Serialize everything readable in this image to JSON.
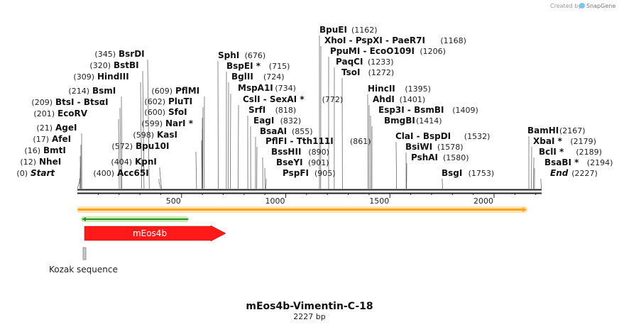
{
  "credit": {
    "created_by": "Created by",
    "brand": "SnapGene"
  },
  "plasmid": {
    "name": "mEos4b-Vimentin-C-18",
    "length_label": "2227 bp",
    "length": 2227
  },
  "ruler": {
    "ticks": [
      500,
      1000,
      1500,
      2000
    ]
  },
  "colors": {
    "backbone": "#222222",
    "orf_fill": "#f7a625",
    "orf_outline": "#fdd9a0",
    "green_fill": "#2f8f2f",
    "green_outline": "#c9ecb0",
    "meos4b": "#ff1a1a",
    "kozak": "#b0b0b0"
  },
  "features": {
    "orf": {
      "start": 1,
      "end": 2227,
      "direction": "forward"
    },
    "green_orf": {
      "start": 10,
      "end": 540,
      "direction": "reverse"
    },
    "meos4b": {
      "label": "mEos4b",
      "start": 10,
      "end": 700
    },
    "kozak": {
      "label": "Kozak sequence",
      "start": 3,
      "end": 10
    }
  },
  "sites": [
    {
      "name": "Start",
      "pos_label": "(0)",
      "bp": 0,
      "style": "italic"
    },
    {
      "name": "NheI",
      "pos_label": "(12)",
      "bp": 12
    },
    {
      "name": "BmtI",
      "pos_label": "(16)",
      "bp": 16
    },
    {
      "name": "AfeI",
      "pos_label": "(17)",
      "bp": 17
    },
    {
      "name": "AgeI",
      "pos_label": "(21)",
      "bp": 21
    },
    {
      "name": "EcoRV",
      "pos_label": "(201)",
      "bp": 201
    },
    {
      "name": "BtsI - BtsαI",
      "pos_label": "(209)",
      "bp": 209
    },
    {
      "name": "BsmI",
      "pos_label": "(214)",
      "bp": 214
    },
    {
      "name": "HindIII",
      "pos_label": "(309)",
      "bp": 309
    },
    {
      "name": "BstBI",
      "pos_label": "(320)",
      "bp": 320
    },
    {
      "name": "BsrDI",
      "pos_label": "(345)",
      "bp": 345
    },
    {
      "name": "Acc65I",
      "pos_label": "(400)",
      "bp": 400
    },
    {
      "name": "KpnI",
      "pos_label": "(404)",
      "bp": 404
    },
    {
      "name": "Bpu10I",
      "pos_label": "(572)",
      "bp": 572
    },
    {
      "name": "KasI",
      "pos_label": "(598)",
      "bp": 598
    },
    {
      "name": "NarI *",
      "pos_label": "(599)",
      "bp": 599
    },
    {
      "name": "SfoI",
      "pos_label": "(600)",
      "bp": 600
    },
    {
      "name": "PluTI",
      "pos_label": "(602)",
      "bp": 602
    },
    {
      "name": "PflMI",
      "pos_label": "(609)",
      "bp": 609
    },
    {
      "name": "SphI",
      "pos_label": "(676)",
      "bp": 676
    },
    {
      "name": "BspEI *",
      "pos_label": "(715)",
      "bp": 715
    },
    {
      "name": "BglII",
      "pos_label": "(724)",
      "bp": 724
    },
    {
      "name": "MspA1I",
      "pos_label": "(734)",
      "bp": 734
    },
    {
      "name": "CslI - SexAI *",
      "pos_label": "(772)",
      "bp": 772
    },
    {
      "name": "SrfI",
      "pos_label": "(818)",
      "bp": 818
    },
    {
      "name": "EagI",
      "pos_label": "(832)",
      "bp": 832
    },
    {
      "name": "BsaAI",
      "pos_label": "(855)",
      "bp": 855
    },
    {
      "name": "PflFI - Tth111I",
      "pos_label": "(861)",
      "bp": 861
    },
    {
      "name": "BssHII",
      "pos_label": "(890)",
      "bp": 890
    },
    {
      "name": "BseYI",
      "pos_label": "(901)",
      "bp": 901
    },
    {
      "name": "PspFI",
      "pos_label": "(905)",
      "bp": 905
    },
    {
      "name": "BpuEI",
      "pos_label": "(1162)",
      "bp": 1162
    },
    {
      "name": "XhoI - PspXI - PaeR7I",
      "pos_label": "(1168)",
      "bp": 1168
    },
    {
      "name": "PpuMI - EcoO109I",
      "pos_label": "(1206)",
      "bp": 1206
    },
    {
      "name": "PaqCI",
      "pos_label": "(1233)",
      "bp": 1233
    },
    {
      "name": "TsoI",
      "pos_label": "(1272)",
      "bp": 1272
    },
    {
      "name": "HincII",
      "pos_label": "(1395)",
      "bp": 1395
    },
    {
      "name": "AhdI",
      "pos_label": "(1401)",
      "bp": 1401
    },
    {
      "name": "Esp3I - BsmBI",
      "pos_label": "(1409)",
      "bp": 1409
    },
    {
      "name": "BmgBI",
      "pos_label": "(1414)",
      "bp": 1414
    },
    {
      "name": "ClaI - BspDI",
      "pos_label": "(1532)",
      "bp": 1532
    },
    {
      "name": "BsiWI",
      "pos_label": "(1578)",
      "bp": 1578
    },
    {
      "name": "PshAI",
      "pos_label": "(1580)",
      "bp": 1580
    },
    {
      "name": "BsgI",
      "pos_label": "(1753)",
      "bp": 1753
    },
    {
      "name": "BamHI",
      "pos_label": "(2167)",
      "bp": 2167
    },
    {
      "name": "XbaI *",
      "pos_label": "(2179)",
      "bp": 2179
    },
    {
      "name": "BclI *",
      "pos_label": "(2189)",
      "bp": 2189
    },
    {
      "name": "BsaBI *",
      "pos_label": "(2194)",
      "bp": 2194
    },
    {
      "name": "End",
      "pos_label": "(2227)",
      "bp": 2227,
      "style": "italic"
    }
  ]
}
